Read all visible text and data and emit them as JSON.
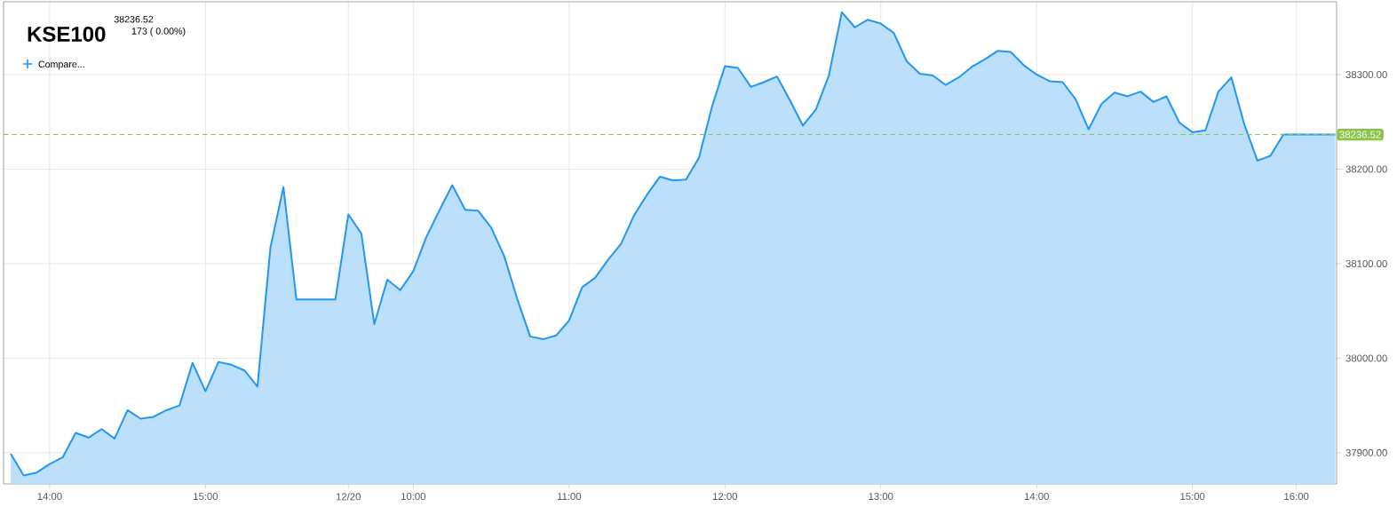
{
  "chart_data": {
    "type": "area",
    "title": "KSE100",
    "subtitle": "38236.52",
    "annotations": [
      "173 ( 0.00%)",
      "Compare..."
    ],
    "categories": [
      null,
      null,
      null,
      "14:00",
      null,
      null,
      null,
      null,
      null,
      null,
      null,
      null,
      null,
      null,
      null,
      "15:00",
      null,
      null,
      null,
      null,
      null,
      null,
      null,
      null,
      null,
      null,
      "12/20",
      null,
      null,
      null,
      null,
      "10:00",
      null,
      null,
      null,
      null,
      null,
      null,
      null,
      null,
      null,
      null,
      null,
      "11:00",
      null,
      null,
      null,
      null,
      null,
      null,
      null,
      null,
      null,
      null,
      null,
      "12:00",
      null,
      null,
      null,
      null,
      null,
      null,
      null,
      null,
      null,
      null,
      null,
      "13:00",
      null,
      null,
      null,
      null,
      null,
      null,
      null,
      null,
      null,
      null,
      null,
      "14:00",
      null,
      null,
      null,
      null,
      null,
      null,
      null,
      null,
      null,
      null,
      null,
      "15:00",
      null,
      null,
      null,
      null,
      null,
      null,
      null,
      "16:00",
      null,
      null,
      null
    ],
    "values": [
      37899,
      37876,
      37879,
      37888,
      37895,
      37921,
      37916,
      37925,
      37915,
      37945,
      37936,
      37938,
      37945,
      37950,
      37995,
      37965,
      37996,
      37993,
      37987,
      37970,
      38117,
      38181,
      38062,
      38062,
      38062,
      38062,
      38152,
      38132,
      38036,
      38083,
      38072,
      38092,
      38128,
      38156,
      38183,
      38157,
      38156,
      38138,
      38108,
      38063,
      38023,
      38020,
      38024,
      38040,
      38075,
      38085,
      38104,
      38121,
      38151,
      38173,
      38192,
      38188,
      38189,
      38212,
      38266,
      38309,
      38307,
      38287,
      38292,
      38298,
      38273,
      38246,
      38263,
      38299,
      38366,
      38350,
      38358,
      38354,
      38344,
      38314,
      38301,
      38299,
      38289,
      38297,
      38308,
      38316,
      38325,
      38324,
      38310,
      38300,
      38293,
      38292,
      38274,
      38242,
      38269,
      38281,
      38277,
      38282,
      38271,
      38277,
      38249,
      38239,
      38241,
      38282,
      38297,
      38247,
      38209,
      38214,
      38236.52,
      38236.52,
      38236.52,
      38236.52,
      38236.52
    ],
    "color": "#2196f3",
    "ylim": [
      37867,
      38377
    ],
    "yticks": [
      {
        "value": 37900,
        "label": "37900.00"
      },
      {
        "value": 38000,
        "label": "38000.00"
      },
      {
        "value": 38100,
        "label": "38100.00"
      },
      {
        "value": 38200,
        "label": "38200.00"
      },
      {
        "value": 38300,
        "label": "38300.00"
      }
    ],
    "ref_lines": [
      {
        "axis": "y",
        "value": 38236.52,
        "label": "38236.52",
        "color": "#8bc34a",
        "line_style": "dashed"
      }
    ],
    "grid": true
  }
}
